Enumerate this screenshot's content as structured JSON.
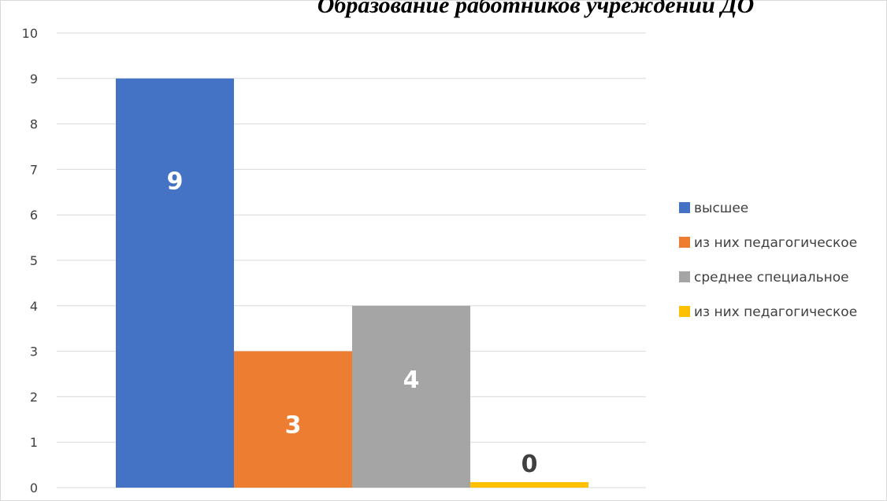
{
  "chart_data": {
    "type": "bar",
    "title": "Образование работников учреждений ДО",
    "xlabel": "",
    "ylabel": "",
    "ylim": [
      0,
      10
    ],
    "yticks": [
      0,
      1,
      2,
      3,
      4,
      5,
      6,
      7,
      8,
      9,
      10
    ],
    "grid": true,
    "legend_position": "right",
    "categories": [
      ""
    ],
    "series": [
      {
        "name": "высшее",
        "values": [
          9
        ],
        "color": "#4472C4",
        "label_color": "#FFFFFF"
      },
      {
        "name": "из них педагогическое",
        "values": [
          3
        ],
        "color": "#ED7D31",
        "label_color": "#FFFFFF"
      },
      {
        "name": "среднее специальное",
        "values": [
          4
        ],
        "color": "#A5A5A5",
        "label_color": "#FFFFFF"
      },
      {
        "name": "из них педагогическое",
        "values": [
          0
        ],
        "color": "#FFC000",
        "label_color": "#404040"
      }
    ]
  }
}
